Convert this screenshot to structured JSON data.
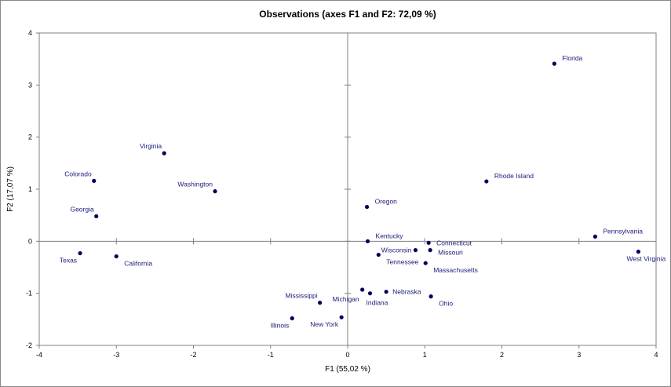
{
  "chart_data": {
    "type": "scatter",
    "title": "Observations (axes F1 and F2: 72,09 %)",
    "xlabel": "F1 (55,02 %)",
    "ylabel": "F2 (17,07 %)",
    "xlim": [
      -4,
      4
    ],
    "ylim": [
      -2,
      4
    ],
    "xticks": [
      -4,
      -3,
      -2,
      -1,
      0,
      1,
      2,
      3,
      4
    ],
    "yticks": [
      -2,
      -1,
      0,
      1,
      2,
      3,
      4
    ],
    "grid": false,
    "point_color": "#00005e",
    "label_color": "#1a1a7a",
    "points": [
      {
        "name": "Florida",
        "x": 2.68,
        "y": 3.41
      },
      {
        "name": "Rhode Island",
        "x": 1.8,
        "y": 1.15
      },
      {
        "name": "Pennsylvania",
        "x": 3.21,
        "y": 0.09
      },
      {
        "name": "West Virginia",
        "x": 3.77,
        "y": -0.2
      },
      {
        "name": "Oregon",
        "x": 0.25,
        "y": 0.66
      },
      {
        "name": "Kentucky",
        "x": 0.26,
        "y": 0.0
      },
      {
        "name": "Connecticut",
        "x": 1.05,
        "y": -0.03
      },
      {
        "name": "Missouri",
        "x": 1.07,
        "y": -0.17
      },
      {
        "name": "Wisconsin",
        "x": 0.88,
        "y": -0.17
      },
      {
        "name": "Tennessee",
        "x": 0.4,
        "y": -0.26
      },
      {
        "name": "Massachusetts",
        "x": 1.01,
        "y": -0.42
      },
      {
        "name": "Michigan",
        "x": 0.19,
        "y": -0.93
      },
      {
        "name": "Indiana",
        "x": 0.29,
        "y": -1.0
      },
      {
        "name": "Nebraska",
        "x": 0.5,
        "y": -0.97
      },
      {
        "name": "Ohio",
        "x": 1.08,
        "y": -1.06
      },
      {
        "name": "Mississippi",
        "x": -0.36,
        "y": -1.18
      },
      {
        "name": "Illinois",
        "x": -0.72,
        "y": -1.48
      },
      {
        "name": "New York",
        "x": -0.08,
        "y": -1.46
      },
      {
        "name": "Virginia",
        "x": -2.38,
        "y": 1.69
      },
      {
        "name": "Colorado",
        "x": -3.29,
        "y": 1.16
      },
      {
        "name": "Washington",
        "x": -1.72,
        "y": 0.96
      },
      {
        "name": "Georgia",
        "x": -3.26,
        "y": 0.48
      },
      {
        "name": "Texas",
        "x": -3.47,
        "y": -0.23
      },
      {
        "name": "California",
        "x": -3.0,
        "y": -0.29
      }
    ]
  }
}
